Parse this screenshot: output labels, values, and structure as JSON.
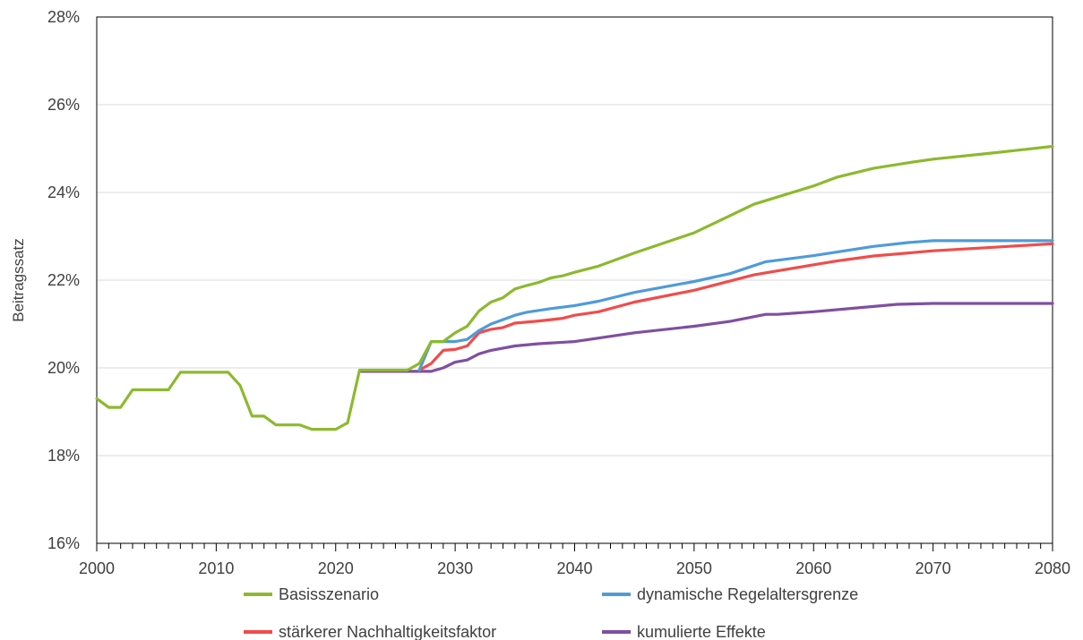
{
  "chart_data": {
    "type": "line",
    "ylabel": "Beitragssatz",
    "xlabel": "",
    "xlim": [
      2000,
      2080
    ],
    "ylim": [
      16,
      28
    ],
    "x_ticks": [
      "2000",
      "2010",
      "2020",
      "2030",
      "2040",
      "2050",
      "2060",
      "2070",
      "2080"
    ],
    "y_ticks": [
      "16%",
      "18%",
      "20%",
      "22%",
      "24%",
      "26%",
      "28%"
    ],
    "grid": "horizontal",
    "legend_placement": "bottom",
    "series": [
      {
        "name": "Basisszenario",
        "color": "#8db92e",
        "points": [
          [
            2000,
            19.3
          ],
          [
            2001,
            19.1
          ],
          [
            2002,
            19.1
          ],
          [
            2003,
            19.5
          ],
          [
            2004,
            19.5
          ],
          [
            2005,
            19.5
          ],
          [
            2006,
            19.5
          ],
          [
            2007,
            19.9
          ],
          [
            2008,
            19.9
          ],
          [
            2009,
            19.9
          ],
          [
            2010,
            19.9
          ],
          [
            2011,
            19.9
          ],
          [
            2012,
            19.6
          ],
          [
            2013,
            18.9
          ],
          [
            2014,
            18.9
          ],
          [
            2015,
            18.7
          ],
          [
            2016,
            18.7
          ],
          [
            2017,
            18.7
          ],
          [
            2018,
            18.6
          ],
          [
            2019,
            18.6
          ],
          [
            2020,
            18.6
          ],
          [
            2021,
            18.75
          ],
          [
            2022,
            19.95
          ],
          [
            2023,
            19.95
          ],
          [
            2024,
            19.95
          ],
          [
            2025,
            19.95
          ],
          [
            2026,
            19.95
          ],
          [
            2027,
            20.1
          ],
          [
            2028,
            20.6
          ],
          [
            2029,
            20.6
          ],
          [
            2030,
            20.8
          ],
          [
            2031,
            20.95
          ],
          [
            2032,
            21.3
          ],
          [
            2033,
            21.5
          ],
          [
            2034,
            21.6
          ],
          [
            2035,
            21.8
          ],
          [
            2036,
            21.88
          ],
          [
            2037,
            21.95
          ],
          [
            2038,
            22.05
          ],
          [
            2039,
            22.1
          ],
          [
            2040,
            22.18
          ],
          [
            2042,
            22.32
          ],
          [
            2045,
            22.62
          ],
          [
            2050,
            23.08
          ],
          [
            2055,
            23.73
          ],
          [
            2060,
            24.15
          ],
          [
            2062,
            24.35
          ],
          [
            2065,
            24.55
          ],
          [
            2068,
            24.68
          ],
          [
            2070,
            24.76
          ],
          [
            2075,
            24.9
          ],
          [
            2080,
            25.05
          ]
        ]
      },
      {
        "name": "dynamische Regelaltersgrenze",
        "color": "#4f9bd9",
        "points": [
          [
            2027,
            19.95
          ],
          [
            2028,
            20.6
          ],
          [
            2029,
            20.6
          ],
          [
            2030,
            20.6
          ],
          [
            2031,
            20.65
          ],
          [
            2032,
            20.85
          ],
          [
            2033,
            21.0
          ],
          [
            2035,
            21.2
          ],
          [
            2036,
            21.27
          ],
          [
            2038,
            21.35
          ],
          [
            2040,
            21.42
          ],
          [
            2042,
            21.52
          ],
          [
            2045,
            21.72
          ],
          [
            2050,
            21.97
          ],
          [
            2053,
            22.15
          ],
          [
            2056,
            22.42
          ],
          [
            2060,
            22.56
          ],
          [
            2065,
            22.77
          ],
          [
            2068,
            22.86
          ],
          [
            2070,
            22.9
          ],
          [
            2080,
            22.9
          ]
        ]
      },
      {
        "name": "stärkerer Nachhaltigkeitsfaktor",
        "color": "#f24b4b",
        "points": [
          [
            2027,
            19.95
          ],
          [
            2028,
            20.1
          ],
          [
            2029,
            20.4
          ],
          [
            2030,
            20.42
          ],
          [
            2031,
            20.5
          ],
          [
            2032,
            20.8
          ],
          [
            2033,
            20.88
          ],
          [
            2034,
            20.92
          ],
          [
            2035,
            21.02
          ],
          [
            2037,
            21.07
          ],
          [
            2039,
            21.13
          ],
          [
            2040,
            21.2
          ],
          [
            2042,
            21.28
          ],
          [
            2045,
            21.5
          ],
          [
            2050,
            21.77
          ],
          [
            2055,
            22.12
          ],
          [
            2060,
            22.35
          ],
          [
            2062,
            22.44
          ],
          [
            2065,
            22.55
          ],
          [
            2070,
            22.67
          ],
          [
            2075,
            22.75
          ],
          [
            2080,
            22.83
          ]
        ]
      },
      {
        "name": "kumulierte Effekte",
        "color": "#7f4fa0",
        "points": [
          [
            2022,
            19.92
          ],
          [
            2027,
            19.92
          ],
          [
            2028,
            19.92
          ],
          [
            2029,
            20.0
          ],
          [
            2030,
            20.13
          ],
          [
            2031,
            20.18
          ],
          [
            2032,
            20.32
          ],
          [
            2033,
            20.4
          ],
          [
            2035,
            20.5
          ],
          [
            2037,
            20.55
          ],
          [
            2040,
            20.6
          ],
          [
            2042,
            20.68
          ],
          [
            2045,
            20.8
          ],
          [
            2050,
            20.95
          ],
          [
            2053,
            21.06
          ],
          [
            2056,
            21.22
          ],
          [
            2057,
            21.22
          ],
          [
            2060,
            21.28
          ],
          [
            2065,
            21.4
          ],
          [
            2067,
            21.45
          ],
          [
            2070,
            21.47
          ],
          [
            2080,
            21.47
          ]
        ]
      }
    ]
  }
}
